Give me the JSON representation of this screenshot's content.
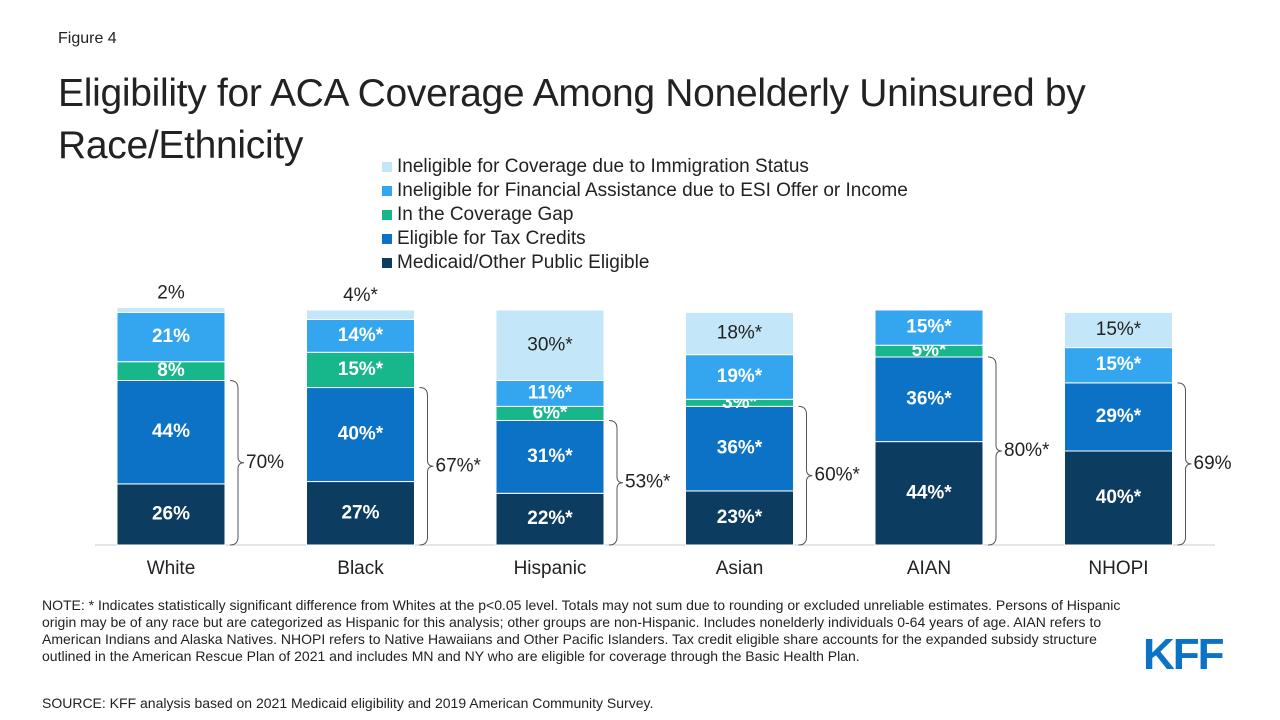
{
  "figure_label": "Figure 4",
  "chart_data": {
    "type": "bar",
    "stacked": true,
    "title": "Eligibility for ACA Coverage Among Nonelderly Uninsured by Race/Ethnicity",
    "categories": [
      "White",
      "Black",
      "Hispanic",
      "Asian",
      "AIAN",
      "NHOPI"
    ],
    "ylim": [
      0,
      100
    ],
    "series": [
      {
        "name": "Medicaid/Other Public Eligible",
        "color": "#0d3c61",
        "values": [
          26,
          27,
          22,
          23,
          44,
          40
        ],
        "value_labels": [
          "26%",
          "27%",
          "22%*",
          "23%*",
          "44%*",
          "40%*"
        ]
      },
      {
        "name": "Eligible for Tax Credits",
        "color": "#0b72c5",
        "values": [
          44,
          40,
          31,
          36,
          36,
          29
        ],
        "value_labels": [
          "44%",
          "40%*",
          "31%*",
          "36%*",
          "36%*",
          "29%*"
        ]
      },
      {
        "name": "In the Coverage Gap",
        "color": "#17b78b",
        "values": [
          8,
          15,
          6,
          3,
          5,
          null
        ],
        "value_labels": [
          "8%",
          "15%*",
          "6%*",
          "3%*",
          "5%*",
          null
        ]
      },
      {
        "name": "Ineligible for Financial Assistance due to ESI Offer or Income",
        "color": "#34a6ef",
        "values": [
          21,
          14,
          11,
          19,
          15,
          15
        ],
        "value_labels": [
          "21%",
          "14%*",
          "11%*",
          "19%*",
          "15%*",
          "15%*"
        ]
      },
      {
        "name": "Ineligible for Coverage due to Immigration Status",
        "color": "#c3e6f8",
        "values": [
          2,
          4,
          30,
          18,
          null,
          15
        ],
        "value_labels": [
          "2%",
          "4%*",
          "30%*",
          "18%*",
          null,
          "15%*"
        ]
      }
    ],
    "brackets": {
      "values": [
        70,
        67,
        53,
        60,
        80,
        69
      ],
      "value_labels": [
        "70%",
        "67%*",
        "53%*",
        "60%*",
        "80%*",
        "69%"
      ]
    }
  },
  "note": "NOTE: * Indicates statistically significant difference from Whites at the p<0.05 level. Totals may not sum due to rounding or excluded unreliable estimates. Persons of Hispanic origin may be of any race but are categorized as Hispanic for this analysis; other groups are non-Hispanic. Includes nonelderly individuals 0-64 years of age. AIAN refers to American Indians and Alaska Natives. NHOPI refers to Native Hawaiians and Other Pacific Islanders. Tax credit eligible share accounts for the expanded subsidy structure outlined in the American Rescue Plan of 2021 and includes MN and NY who are eligible for coverage through the Basic Health Plan.",
  "source": "SOURCE: KFF analysis based on 2021 Medicaid eligibility and 2019 American Community Survey.",
  "logo": "KFF"
}
